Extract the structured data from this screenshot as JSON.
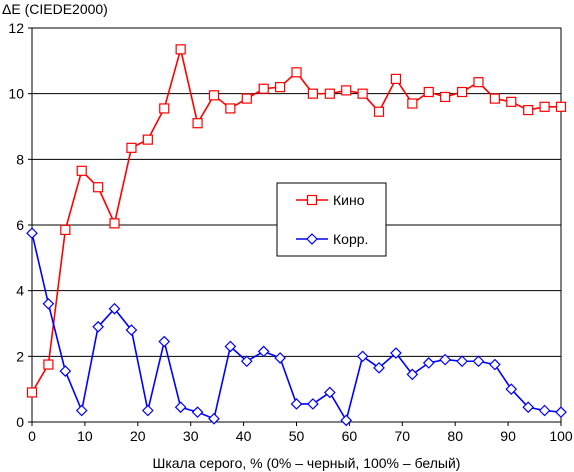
{
  "chart_data": {
    "type": "line",
    "title": "",
    "ylabel": "ΔE (CIEDE2000)",
    "xlabel": "Шкала серого, % (0% – черный, 100% – белый)",
    "xlim": [
      0,
      100
    ],
    "ylim": [
      0,
      12
    ],
    "x_ticks": [
      0,
      10,
      20,
      30,
      40,
      50,
      60,
      70,
      80,
      90,
      100
    ],
    "y_ticks": [
      0,
      2,
      4,
      6,
      8,
      10,
      12
    ],
    "grid": "horizontal",
    "legend_position": "center-right",
    "x": [
      0,
      3.1,
      6.3,
      9.4,
      12.5,
      15.6,
      18.8,
      21.9,
      25,
      28.1,
      31.3,
      34.4,
      37.5,
      40.6,
      43.8,
      46.9,
      50,
      53.1,
      56.3,
      59.4,
      62.5,
      65.6,
      68.8,
      71.9,
      75,
      78.1,
      81.3,
      84.4,
      87.5,
      90.6,
      93.8,
      96.9,
      100
    ],
    "series": [
      {
        "name": "Кино",
        "color": "#ff0000",
        "marker": "square",
        "values": [
          0.9,
          1.75,
          5.85,
          7.65,
          7.15,
          6.05,
          8.35,
          8.6,
          9.55,
          11.35,
          9.1,
          9.95,
          9.55,
          9.85,
          10.15,
          10.2,
          10.65,
          10.0,
          10.0,
          10.1,
          10.0,
          9.45,
          10.45,
          9.7,
          10.05,
          9.9,
          10.05,
          10.35,
          9.85,
          9.75,
          9.5,
          9.6,
          9.6
        ]
      },
      {
        "name": "Корр.",
        "color": "#0000ff",
        "marker": "diamond",
        "values": [
          5.75,
          3.6,
          1.55,
          0.35,
          2.9,
          3.45,
          2.8,
          0.35,
          2.45,
          0.45,
          0.3,
          0.1,
          2.3,
          1.85,
          2.15,
          1.95,
          0.55,
          0.55,
          0.9,
          0.05,
          2.0,
          1.65,
          2.1,
          1.45,
          1.8,
          1.9,
          1.85,
          1.85,
          1.75,
          1.0,
          0.45,
          0.35,
          0.3
        ]
      }
    ]
  }
}
